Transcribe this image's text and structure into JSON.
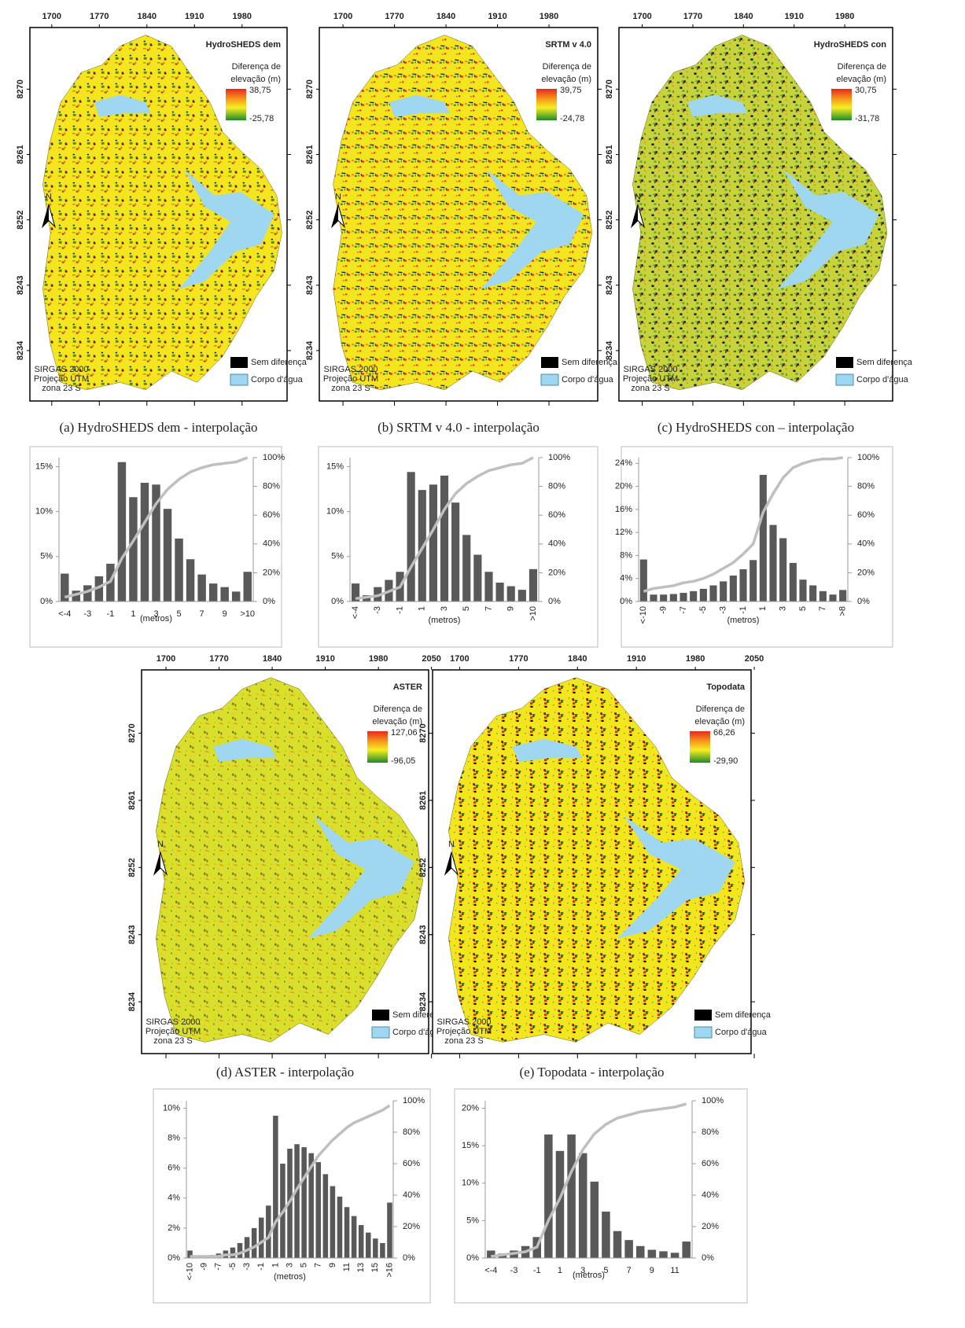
{
  "maps": [
    {
      "title": "HydroSHEDS dem",
      "legend_title": [
        "Diferença de",
        "elevação (m)"
      ],
      "max": "38,75",
      "min": "-25,78",
      "xticks": [
        1700,
        1770,
        1840,
        1910,
        1980
      ],
      "yticks": [
        8270,
        8261,
        8252,
        8243,
        8234
      ],
      "north": "N",
      "crs": [
        "SIRGAS 2000",
        "Projeção UTM",
        "zona 23 S"
      ],
      "legend": [
        "Sem diferença",
        "Corpo d'água"
      ],
      "caption": "(a) HydroSHEDS dem - interpolação"
    },
    {
      "title": "SRTM v 4.0",
      "legend_title": [
        "Diferença de",
        "elevação (m)"
      ],
      "max": "39,75",
      "min": "-24,78",
      "xticks": [
        1700,
        1770,
        1840,
        1910,
        1980
      ],
      "yticks": [
        8270,
        8261,
        8252,
        8243,
        8234
      ],
      "north": "N",
      "crs": [
        "SIRGAS 2000",
        "Projeção UTM",
        "zona 23 S"
      ],
      "legend": [
        "Sem diferença",
        "Corpo d'água"
      ],
      "caption": "(b) SRTM v 4.0 - interpolação"
    },
    {
      "title": "HydroSHEDS con",
      "legend_title": [
        "Diferença de",
        "elevação (m)"
      ],
      "max": "30,75",
      "min": "-31,78",
      "xticks": [
        1700,
        1770,
        1840,
        1910,
        1980
      ],
      "yticks": [
        8270,
        8261,
        8252,
        8243,
        8234
      ],
      "north": "N",
      "crs": [
        "SIRGAS 2000",
        "Projeção UTM",
        "zona 23 S"
      ],
      "legend": [
        "Sem diferença",
        "Corpo d'água"
      ],
      "caption": "(c) HydroSHEDS con – interpolação"
    },
    {
      "title": "ASTER",
      "legend_title": [
        "Diferença de",
        "elevação (m)"
      ],
      "max": "127,06",
      "min": "-96,05",
      "xticks": [
        1700,
        1770,
        1840,
        1910,
        1980,
        2050
      ],
      "yticks": [
        8270,
        8261,
        8252,
        8243,
        8234
      ],
      "north": "N",
      "crs": [
        "SIRGAS 2000",
        "Projeção UTM",
        "zona 23 S"
      ],
      "legend": [
        "Sem diferença",
        "Corpo d'água"
      ],
      "caption": "(d) ASTER - interpolação"
    },
    {
      "title": "Topodata",
      "legend_title": [
        "Diferença de",
        "elevação (m)"
      ],
      "max": "66,26",
      "min": "-29,90",
      "xticks": [
        1700,
        1770,
        1840,
        1910,
        1980,
        2050
      ],
      "yticks": [
        8270,
        8261,
        8252,
        8243,
        8234
      ],
      "north": "N",
      "crs": [
        "SIRGAS 2000",
        "Projeção UTM",
        "zona 23 S"
      ],
      "legend": [
        "Sem diferença",
        "Corpo d'água"
      ],
      "caption": "(e) Topodata - interpolação"
    }
  ],
  "chart_data": [
    {
      "type": "bar",
      "xlabel": "(metros)",
      "rotate_xticks": false,
      "categories": [
        "<-4",
        null,
        "-3",
        null,
        "-1",
        null,
        "1",
        null,
        "3",
        null,
        "5",
        null,
        "7",
        null,
        "9",
        null,
        ">10"
      ],
      "series": [
        {
          "color": "#595959",
          "values": [
            3.1,
            1.2,
            1.8,
            2.8,
            4.2,
            15.5,
            11.6,
            13.2,
            13.0,
            10.3,
            7.0,
            4.7,
            3.0,
            2.0,
            1.6,
            1.1,
            3.3
          ]
        },
        {
          "type": "line",
          "axis": "y2",
          "color": "#bfbfbf",
          "values": [
            3,
            5,
            7,
            10,
            14,
            30,
            42,
            55,
            68,
            78,
            85,
            90,
            93,
            95,
            96,
            97,
            100
          ]
        }
      ],
      "ylim": [
        0,
        16
      ],
      "yticks": [
        {
          "value": 0,
          "label": "0%"
        },
        {
          "value": 5,
          "label": "5%"
        },
        {
          "value": 10,
          "label": "10%"
        },
        {
          "value": 15,
          "label": "15%"
        }
      ],
      "y2lim": [
        0,
        100
      ],
      "y2ticks": [
        {
          "value": 0,
          "label": "0%"
        },
        {
          "value": 20,
          "label": "20%"
        },
        {
          "value": 40,
          "label": "40%"
        },
        {
          "value": 60,
          "label": "60%"
        },
        {
          "value": 80,
          "label": "80%"
        },
        {
          "value": 100,
          "label": "100%"
        }
      ]
    },
    {
      "type": "bar",
      "xlabel": "(metros)",
      "rotate_xticks": true,
      "categories": [
        "<-4",
        null,
        "-3",
        null,
        "-1",
        null,
        "1",
        null,
        "3",
        null,
        "5",
        null,
        "7",
        null,
        "9",
        null,
        ">10"
      ],
      "series": [
        {
          "color": "#595959",
          "values": [
            2.0,
            0.7,
            1.6,
            2.4,
            3.3,
            14.4,
            12.4,
            13.0,
            14.0,
            11.0,
            7.4,
            5.2,
            3.3,
            2.1,
            1.7,
            1.3,
            3.6
          ]
        },
        {
          "type": "line",
          "axis": "y2",
          "color": "#bfbfbf",
          "values": [
            2,
            3,
            4,
            7,
            10,
            24,
            37,
            50,
            64,
            75,
            82,
            87,
            91,
            93,
            95,
            96,
            100
          ]
        }
      ],
      "ylim": [
        0,
        16
      ],
      "yticks": [
        {
          "value": 0,
          "label": "0%"
        },
        {
          "value": 5,
          "label": "5%"
        },
        {
          "value": 10,
          "label": "10%"
        },
        {
          "value": 15,
          "label": "15%"
        }
      ],
      "y2lim": [
        0,
        100
      ],
      "y2ticks": [
        {
          "value": 0,
          "label": "0%"
        },
        {
          "value": 20,
          "label": "20%"
        },
        {
          "value": 40,
          "label": "40%"
        },
        {
          "value": 60,
          "label": "60%"
        },
        {
          "value": 80,
          "label": "80%"
        },
        {
          "value": 100,
          "label": "100%"
        }
      ]
    },
    {
      "type": "bar",
      "xlabel": "(metros)",
      "rotate_xticks": true,
      "categories": [
        "<-10",
        null,
        "-9",
        null,
        "-7",
        null,
        "-5",
        null,
        "-3",
        null,
        "-1",
        null,
        "1",
        null,
        "3",
        null,
        "5",
        null,
        "7",
        null,
        ">8"
      ],
      "series": [
        {
          "color": "#595959",
          "values": [
            7.3,
            1.2,
            1.2,
            1.3,
            1.5,
            1.8,
            2.2,
            2.8,
            3.5,
            4.5,
            5.6,
            7.2,
            22.0,
            13.3,
            11.0,
            6.7,
            3.8,
            2.8,
            1.8,
            1.2,
            2.0
          ]
        },
        {
          "type": "line",
          "axis": "y2",
          "color": "#bfbfbf",
          "values": [
            7,
            9,
            10,
            11,
            13,
            14,
            16,
            19,
            23,
            27,
            33,
            40,
            62,
            75,
            86,
            93,
            96,
            98,
            99,
            99,
            100
          ]
        }
      ],
      "ylim": [
        0,
        25
      ],
      "yticks": [
        {
          "value": 0,
          "label": "0%"
        },
        {
          "value": 4,
          "label": "4%"
        },
        {
          "value": 8,
          "label": "8%"
        },
        {
          "value": 12,
          "label": "12%"
        },
        {
          "value": 16,
          "label": "16%"
        },
        {
          "value": 20,
          "label": "20%"
        },
        {
          "value": 24,
          "label": "24%"
        }
      ],
      "y2lim": [
        0,
        100
      ],
      "y2ticks": [
        {
          "value": 0,
          "label": "0%"
        },
        {
          "value": 20,
          "label": "20%"
        },
        {
          "value": 40,
          "label": "40%"
        },
        {
          "value": 60,
          "label": "60%"
        },
        {
          "value": 80,
          "label": "80%"
        },
        {
          "value": 100,
          "label": "100%"
        }
      ]
    },
    {
      "type": "bar",
      "xlabel": "(metros)",
      "rotate_xticks": true,
      "categories": [
        "<-10",
        null,
        "-9",
        null,
        "-7",
        null,
        "-5",
        null,
        "-3",
        null,
        "-1",
        null,
        "1",
        null,
        "3",
        null,
        "5",
        null,
        "7",
        null,
        "9",
        null,
        "11",
        null,
        "13",
        null,
        "15",
        null,
        ">16"
      ],
      "series": [
        {
          "color": "#595959",
          "values": [
            0.5,
            0.1,
            0.1,
            0.2,
            0.3,
            0.5,
            0.7,
            1.0,
            1.4,
            2.0,
            2.7,
            3.5,
            9.5,
            6.3,
            7.3,
            7.6,
            7.4,
            7.0,
            6.4,
            5.6,
            4.8,
            4.1,
            3.4,
            2.8,
            2.2,
            1.7,
            1.3,
            1.0,
            3.7
          ]
        },
        {
          "type": "line",
          "axis": "y2",
          "color": "#bfbfbf",
          "values": [
            1,
            1,
            1,
            1,
            1,
            2,
            2,
            3,
            5,
            7,
            10,
            13,
            23,
            29,
            36,
            44,
            51,
            58,
            65,
            70,
            75,
            79,
            83,
            86,
            88,
            90,
            92,
            94,
            97
          ]
        }
      ],
      "ylim": [
        0,
        10.5
      ],
      "yticks": [
        {
          "value": 0,
          "label": "0%"
        },
        {
          "value": 2,
          "label": "2%"
        },
        {
          "value": 4,
          "label": "4%"
        },
        {
          "value": 6,
          "label": "6%"
        },
        {
          "value": 8,
          "label": "8%"
        },
        {
          "value": 10,
          "label": "10%"
        }
      ],
      "y2lim": [
        0,
        100
      ],
      "y2ticks": [
        {
          "value": 0,
          "label": "0%"
        },
        {
          "value": 20,
          "label": "20%"
        },
        {
          "value": 40,
          "label": "40%"
        },
        {
          "value": 60,
          "label": "60%"
        },
        {
          "value": 80,
          "label": "80%"
        },
        {
          "value": 100,
          "label": "100%"
        }
      ]
    },
    {
      "type": "bar",
      "xlabel": "(metros)",
      "rotate_xticks": false,
      "categories": [
        "<-4",
        null,
        "-3",
        null,
        "-1",
        null,
        "1",
        null,
        "3",
        null,
        "5",
        null,
        "7",
        null,
        "9",
        null,
        "11",
        null
      ],
      "series": [
        {
          "color": "#595959",
          "values": [
            1.0,
            0.6,
            1.0,
            1.6,
            2.8,
            16.5,
            14.3,
            16.5,
            14.0,
            10.2,
            6.2,
            3.6,
            2.4,
            1.6,
            1.1,
            0.9,
            0.7,
            2.2
          ]
        },
        {
          "type": "line",
          "axis": "y2",
          "color": "#bfbfbf",
          "values": [
            1,
            2,
            3,
            4,
            7,
            24,
            38,
            55,
            69,
            79,
            85,
            89,
            91,
            93,
            94,
            95,
            96,
            98
          ]
        }
      ],
      "ylim": [
        0,
        21
      ],
      "yticks": [
        {
          "value": 0,
          "label": "0%"
        },
        {
          "value": 5,
          "label": "5%"
        },
        {
          "value": 10,
          "label": "10%"
        },
        {
          "value": 15,
          "label": "15%"
        },
        {
          "value": 20,
          "label": "20%"
        }
      ],
      "y2lim": [
        0,
        100
      ],
      "y2ticks": [
        {
          "value": 0,
          "label": "0%"
        },
        {
          "value": 20,
          "label": "20%"
        },
        {
          "value": 40,
          "label": "40%"
        },
        {
          "value": 60,
          "label": "60%"
        },
        {
          "value": 80,
          "label": "80%"
        },
        {
          "value": 100,
          "label": "100%"
        }
      ]
    }
  ]
}
